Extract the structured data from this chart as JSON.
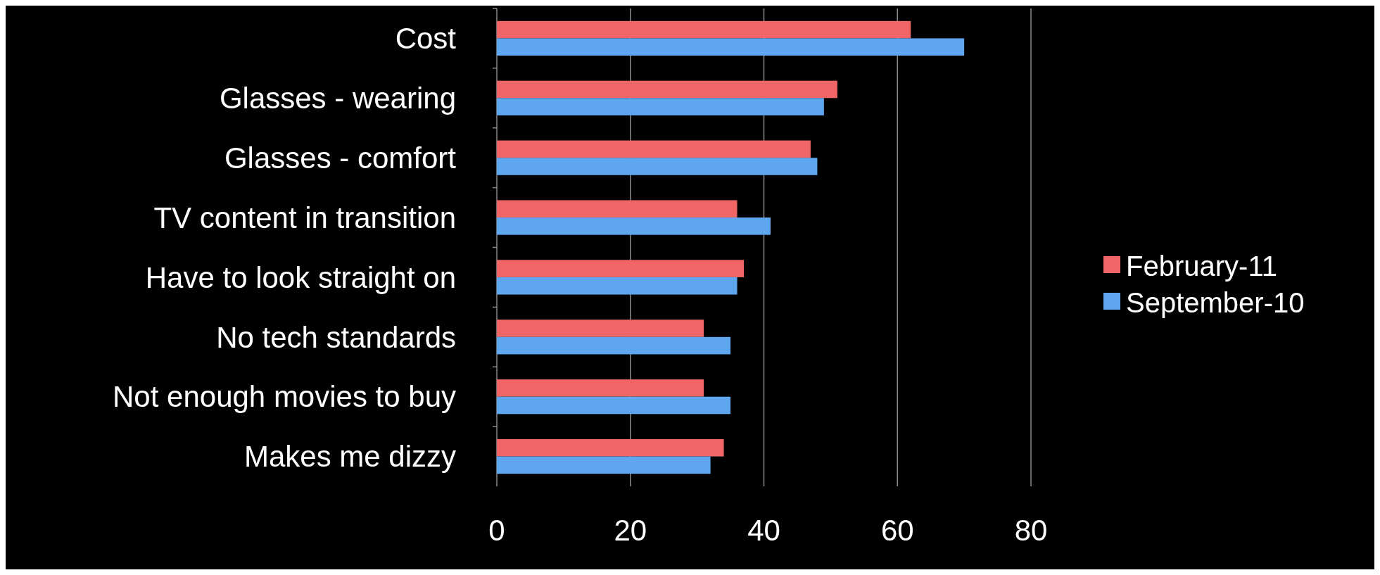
{
  "chart_data": {
    "type": "bar",
    "orientation": "horizontal",
    "categories": [
      "Cost",
      "Glasses - wearing",
      "Glasses - comfort",
      "TV content in transition",
      "Have to look straight on",
      "No tech standards",
      "Not enough movies to buy",
      "Makes me dizzy"
    ],
    "series": [
      {
        "name": "February-11",
        "color": "#f06666",
        "values": [
          62,
          51,
          47,
          36,
          37,
          31,
          31,
          34
        ]
      },
      {
        "name": "September-10",
        "color": "#5ea6ee",
        "values": [
          70,
          49,
          48,
          41,
          36,
          35,
          35,
          32
        ]
      }
    ],
    "xlim": [
      0,
      80
    ],
    "xticks": [
      0,
      20,
      40,
      60,
      80
    ],
    "grid": "x",
    "legend": "right"
  }
}
